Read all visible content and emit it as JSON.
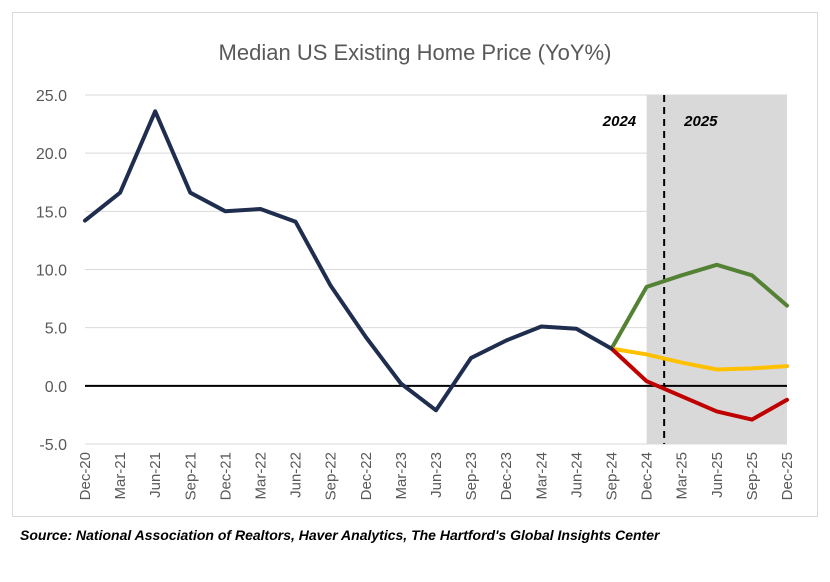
{
  "chart_data": {
    "type": "line",
    "title": "Median US Existing Home Price (YoY%)",
    "xlabel": "",
    "ylabel": "",
    "ylim": [
      -5,
      25
    ],
    "yticks": [
      -5,
      0,
      5,
      10,
      15,
      20,
      25
    ],
    "ytick_labels": [
      "-5.0",
      "0.0",
      "5.0",
      "10.0",
      "15.0",
      "20.0",
      "25.0"
    ],
    "grid": true,
    "categories": [
      "Dec-20",
      "Mar-21",
      "Jun-21",
      "Sep-21",
      "Dec-21",
      "Mar-22",
      "Jun-22",
      "Sep-22",
      "Dec-22",
      "Mar-23",
      "Jun-23",
      "Sep-23",
      "Dec-23",
      "Mar-24",
      "Jun-24",
      "Sep-24",
      "Dec-24",
      "Mar-25",
      "Jun-25",
      "Sep-25",
      "Dec-25"
    ],
    "series": [
      {
        "color": "#1f2d4f",
        "values": [
          14.2,
          16.6,
          23.6,
          16.6,
          15.0,
          15.2,
          14.1,
          8.6,
          4.2,
          0.2,
          -2.1,
          2.4,
          3.9,
          5.1,
          4.9,
          3.2,
          null,
          null,
          null,
          null,
          null
        ]
      },
      {
        "color": "#548235",
        "values": [
          null,
          null,
          null,
          null,
          null,
          null,
          null,
          null,
          null,
          null,
          null,
          null,
          null,
          null,
          null,
          3.2,
          8.5,
          9.5,
          10.4,
          9.5,
          6.9
        ]
      },
      {
        "color": "#ffc000",
        "values": [
          null,
          null,
          null,
          null,
          null,
          null,
          null,
          null,
          null,
          null,
          null,
          null,
          null,
          null,
          null,
          3.2,
          2.7,
          2.0,
          1.4,
          1.5,
          1.7
        ]
      },
      {
        "color": "#c00000",
        "values": [
          null,
          null,
          null,
          null,
          null,
          null,
          null,
          null,
          null,
          null,
          null,
          null,
          null,
          null,
          null,
          3.2,
          0.4,
          -0.9,
          -2.2,
          -2.9,
          -1.2
        ]
      }
    ],
    "shaded_region": {
      "from_category": "Dec-24",
      "to_category": "Dec-25",
      "color": "#d9d9d9"
    },
    "divider": {
      "between": [
        "Dec-24",
        "Mar-25"
      ],
      "style": "dashed",
      "color": "#000000"
    },
    "annotations": [
      "2024",
      "2025"
    ],
    "zero_line": {
      "value": 0,
      "color": "#000000"
    }
  },
  "source_text": "Source: National Association of Realtors, Haver Analytics, The Hartford's Global Insights Center"
}
